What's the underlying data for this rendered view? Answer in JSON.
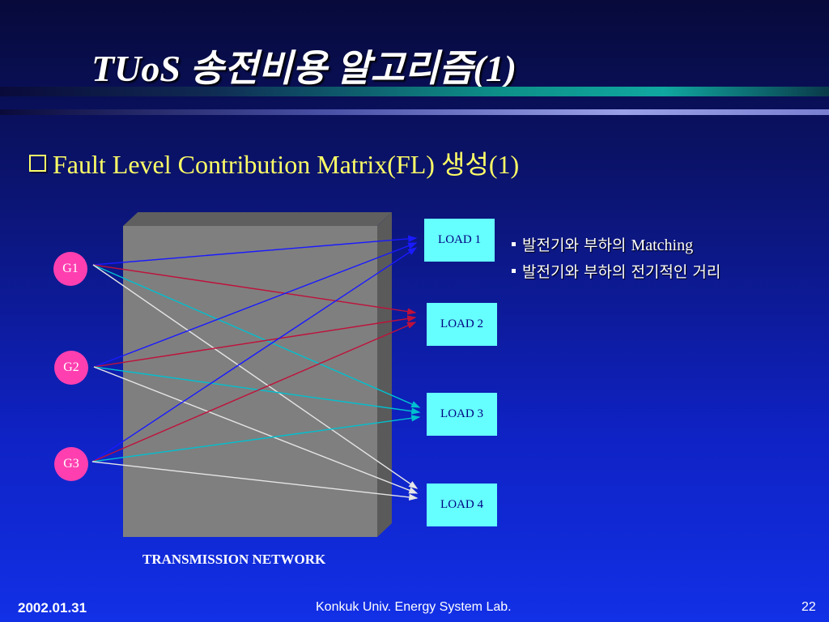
{
  "slide": {
    "title": "TUoS 송전비용 알고리즘(1)",
    "heading": "Fault Level Contribution Matrix(FL) 생성(1)"
  },
  "diagram": {
    "network_label": "TRANSMISSION NETWORK",
    "generators": [
      {
        "id": "g1",
        "label": "G1"
      },
      {
        "id": "g2",
        "label": "G2"
      },
      {
        "id": "g3",
        "label": "G3"
      }
    ],
    "loads": [
      {
        "id": "l1",
        "label": "LOAD 1"
      },
      {
        "id": "l2",
        "label": "LOAD 2"
      },
      {
        "id": "l3",
        "label": "LOAD 3"
      },
      {
        "id": "l4",
        "label": "LOAD 4"
      }
    ],
    "connections": [
      {
        "from": "g1",
        "to": "l1",
        "color": "#1a1aff"
      },
      {
        "from": "g1",
        "to": "l2",
        "color": "#c0103a"
      },
      {
        "from": "g1",
        "to": "l3",
        "color": "#00c0d0"
      },
      {
        "from": "g1",
        "to": "l4",
        "color": "#e6e6e6"
      },
      {
        "from": "g2",
        "to": "l1",
        "color": "#1a1aff"
      },
      {
        "from": "g2",
        "to": "l2",
        "color": "#c0103a"
      },
      {
        "from": "g2",
        "to": "l3",
        "color": "#00c0d0"
      },
      {
        "from": "g2",
        "to": "l4",
        "color": "#e6e6e6"
      },
      {
        "from": "g3",
        "to": "l1",
        "color": "#1a1aff"
      },
      {
        "from": "g3",
        "to": "l2",
        "color": "#c0103a"
      },
      {
        "from": "g3",
        "to": "l3",
        "color": "#00c0d0"
      },
      {
        "from": "g3",
        "to": "l4",
        "color": "#e6e6e6"
      }
    ]
  },
  "notes": {
    "item1_korean": "발전기와 부하의",
    "item1_latin": "Matching",
    "item2": "발전기와 부하의 전기적인 거리"
  },
  "footer": {
    "date": "2002.01.31",
    "lab": "Konkuk Univ. Energy System Lab.",
    "page": "22"
  }
}
